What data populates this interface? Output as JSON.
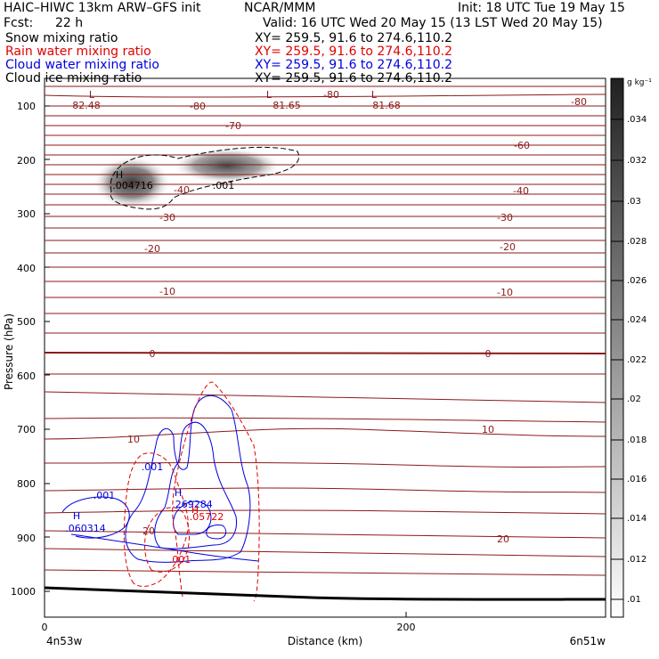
{
  "header": {
    "model": "HAIC–HIWC 13km ARW–GFS init",
    "org": "NCAR/MMM",
    "init": "Init: 18 UTC Tue 19 May 15",
    "fcst_label": "Fcst:",
    "fcst_value": "22 h",
    "valid": "Valid: 16 UTC Wed 20 May 15 (13 LST Wed 20 May 15)"
  },
  "fields": [
    {
      "name": "Snow mixing ratio",
      "xy": "XY= 259.5, 91.6 to 274.6,110.2",
      "color": "#000000"
    },
    {
      "name": "Rain water mixing ratio",
      "xy": "XY= 259.5, 91.6 to 274.6,110.2",
      "color": "#e00000"
    },
    {
      "name": "Cloud water mixing ratio",
      "xy": "XY= 259.5, 91.6 to 274.6,110.2",
      "color": "#0000e0"
    },
    {
      "name": "Cloud ice mixing ratio",
      "xy": "XY= 259.5, 91.6 to 274.6,110.2",
      "color": "#000000"
    }
  ],
  "axes": {
    "ylabel": "Pressure (hPa)",
    "xlabel": "Distance (km)",
    "x_left_label": "4n53w",
    "x_right_label": "6n51w",
    "yticks": [
      "100",
      "200",
      "300",
      "400",
      "500",
      "600",
      "700",
      "800",
      "900",
      "1000"
    ],
    "xticks": [
      "0",
      "200"
    ]
  },
  "colorbar": {
    "unit": "g kg⁻¹",
    "labels": [
      ".034",
      ".032",
      ".03",
      ".028",
      ".026",
      ".024",
      ".022",
      ".02",
      ".018",
      ".016",
      ".014",
      ".012",
      ".01"
    ]
  },
  "chart_data": {
    "type": "contour",
    "ylim": [
      1050,
      50
    ],
    "xlim": [
      0,
      310
    ],
    "yscale": "linear",
    "temperature_contours_C": [
      -80,
      -70,
      -60,
      -50,
      -40,
      -30,
      -20,
      -10,
      0,
      10,
      20
    ],
    "temperature_labels": [
      {
        "text": "-82.48"
      },
      {
        "text": "-80"
      },
      {
        "text": "-81.65"
      },
      {
        "text": "-80"
      },
      {
        "text": "-81.68"
      },
      {
        "text": "-80"
      },
      {
        "text": "-70"
      },
      {
        "text": "-60"
      },
      {
        "text": "-40"
      },
      {
        "text": "-40"
      },
      {
        "text": "-30"
      },
      {
        "text": "-30"
      },
      {
        "text": "-20"
      },
      {
        "text": "-20"
      },
      {
        "text": "-10"
      },
      {
        "text": "-10"
      },
      {
        "text": "0"
      },
      {
        "text": "0"
      },
      {
        "text": "10"
      },
      {
        "text": "10"
      },
      {
        "text": "20"
      },
      {
        "text": "20"
      }
    ],
    "low_markers": [
      "L",
      "L",
      "L"
    ],
    "ice_max": {
      "label": "H",
      "value": ".004716"
    },
    "ice_contour_label": ".001",
    "cloud_water_labels": [
      ".001",
      ".001"
    ],
    "cloud_water_max": [
      {
        "label": "H",
        "value": ".060314"
      },
      {
        "label": "H",
        "value": ".269284"
      }
    ],
    "rain_max": {
      "label": "H",
      "value": ".05722"
    },
    "rain_contour_label": ".001"
  }
}
